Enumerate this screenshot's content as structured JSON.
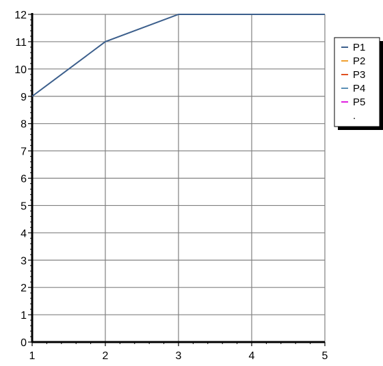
{
  "chart_data": {
    "type": "line",
    "title": "",
    "xlabel": "",
    "ylabel": "",
    "xlim": [
      1,
      5
    ],
    "ylim": [
      0,
      12
    ],
    "x_ticks": [
      1,
      2,
      3,
      4,
      5
    ],
    "y_ticks": [
      0,
      1,
      2,
      3,
      4,
      5,
      6,
      7,
      8,
      9,
      10,
      11,
      12
    ],
    "grid": true,
    "legend_position": "right",
    "series": [
      {
        "name": "P1",
        "color": "#3c5f8c",
        "x": [
          1,
          2,
          3,
          4,
          5
        ],
        "y": [
          9,
          11,
          12,
          12,
          12
        ]
      },
      {
        "name": "P2",
        "color": "#f0a030",
        "x": [],
        "y": []
      },
      {
        "name": "P3",
        "color": "#e05020",
        "x": [],
        "y": []
      },
      {
        "name": "P4",
        "color": "#5a8fb5",
        "x": [],
        "y": []
      },
      {
        "name": "P5",
        "color": "#e020e0",
        "x": [],
        "y": []
      },
      {
        "name": ".",
        "color": "",
        "x": [],
        "y": []
      }
    ]
  }
}
